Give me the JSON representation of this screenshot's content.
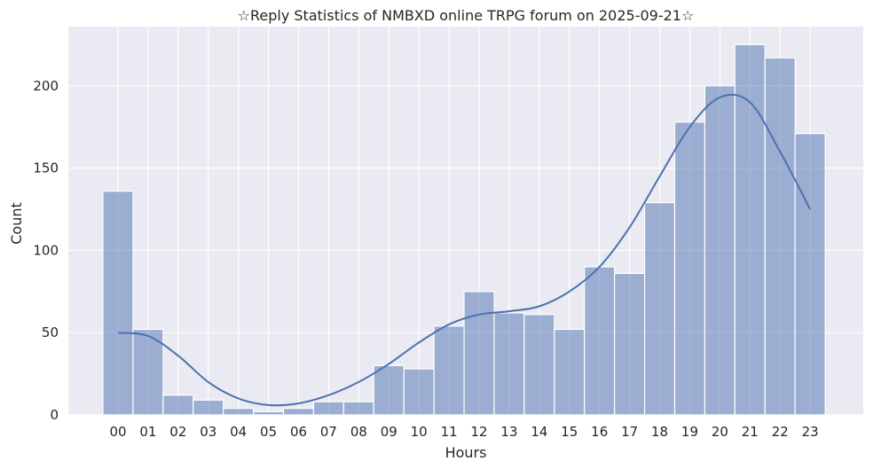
{
  "chart_data": {
    "type": "bar",
    "title": "☆Reply Statistics of NMBXD online TRPG forum on 2025-09-21☆",
    "xlabel": "Hours",
    "ylabel": "Count",
    "categories": [
      "00",
      "01",
      "02",
      "03",
      "04",
      "05",
      "06",
      "07",
      "08",
      "09",
      "10",
      "11",
      "12",
      "13",
      "14",
      "15",
      "16",
      "17",
      "18",
      "19",
      "20",
      "21",
      "22",
      "23"
    ],
    "values": [
      136,
      52,
      12,
      9,
      4,
      2,
      4,
      8,
      8,
      30,
      28,
      54,
      75,
      62,
      61,
      52,
      90,
      86,
      129,
      178,
      200,
      225,
      217,
      171
    ],
    "kde": [
      50,
      48,
      36,
      20,
      10,
      6,
      7,
      12,
      20,
      31,
      44,
      55,
      61,
      63,
      66,
      75,
      90,
      114,
      145,
      175,
      193,
      190,
      160,
      125
    ],
    "yticks": [
      0,
      50,
      100,
      150,
      200
    ],
    "ylim": [
      0,
      236
    ],
    "grid": true,
    "colors": {
      "bar": "#4c72b0",
      "kde": "#4c72b0",
      "plot_bg": "#eaeaf2",
      "grid": "#ffffff"
    }
  }
}
